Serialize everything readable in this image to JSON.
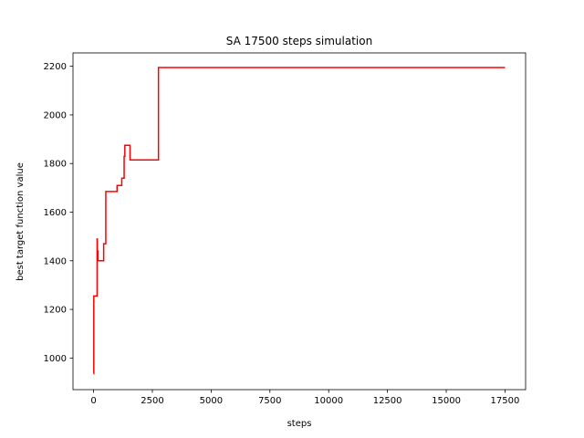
{
  "chart_data": {
    "type": "line",
    "title": "SA 17500 steps simulation",
    "xlabel": "steps",
    "ylabel": "best target function value",
    "xlim": [
      -875,
      18375
    ],
    "ylim": [
      870,
      2255
    ],
    "xticks": [
      0,
      2500,
      5000,
      7500,
      10000,
      12500,
      15000,
      17500
    ],
    "yticks": [
      1000,
      1200,
      1400,
      1600,
      1800,
      2000,
      2200
    ],
    "xtick_labels": [
      "0",
      "2500",
      "5000",
      "7500",
      "10000",
      "12500",
      "15000",
      "17500"
    ],
    "ytick_labels": [
      "1000",
      "1200",
      "1400",
      "1600",
      "1800",
      "2000",
      "2200"
    ],
    "grid": false,
    "series": [
      {
        "color": "#ff0000",
        "step": true,
        "x": [
          0,
          10,
          80,
          150,
          160,
          170,
          190,
          210,
          220,
          430,
          520,
          550,
          1000,
          1200,
          1300,
          1330,
          1500,
          1550,
          2750,
          2760,
          17500
        ],
        "y": [
          935,
          1255,
          1255,
          1490,
          1410,
          1440,
          1400,
          1400,
          1400,
          1470,
          1685,
          1685,
          1710,
          1740,
          1830,
          1875,
          1875,
          1815,
          1815,
          2195,
          2195
        ]
      }
    ]
  }
}
